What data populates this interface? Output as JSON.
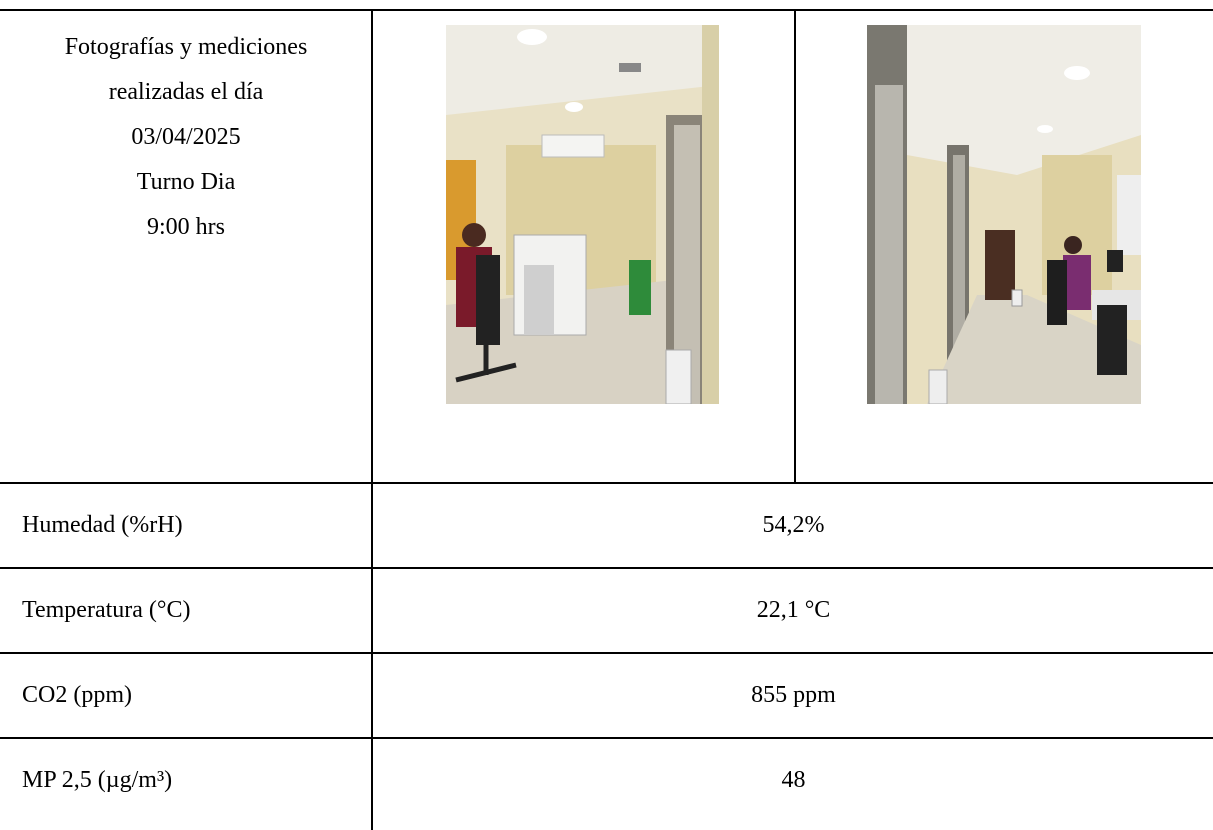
{
  "header": {
    "lines": [
      "Fotografías y mediciones",
      "realizadas el día",
      "03/04/2025",
      "Turno Dia",
      "9:00 hrs"
    ]
  },
  "table": {
    "rows": [
      [
        "Humedad (%rH)",
        "54,2%"
      ],
      [
        "Temperatura (°C)",
        "22,1 °C"
      ],
      [
        "CO2 (ppm)",
        "855 ppm"
      ],
      [
        "MP 2,5 (µg/m³)",
        "48"
      ]
    ]
  }
}
